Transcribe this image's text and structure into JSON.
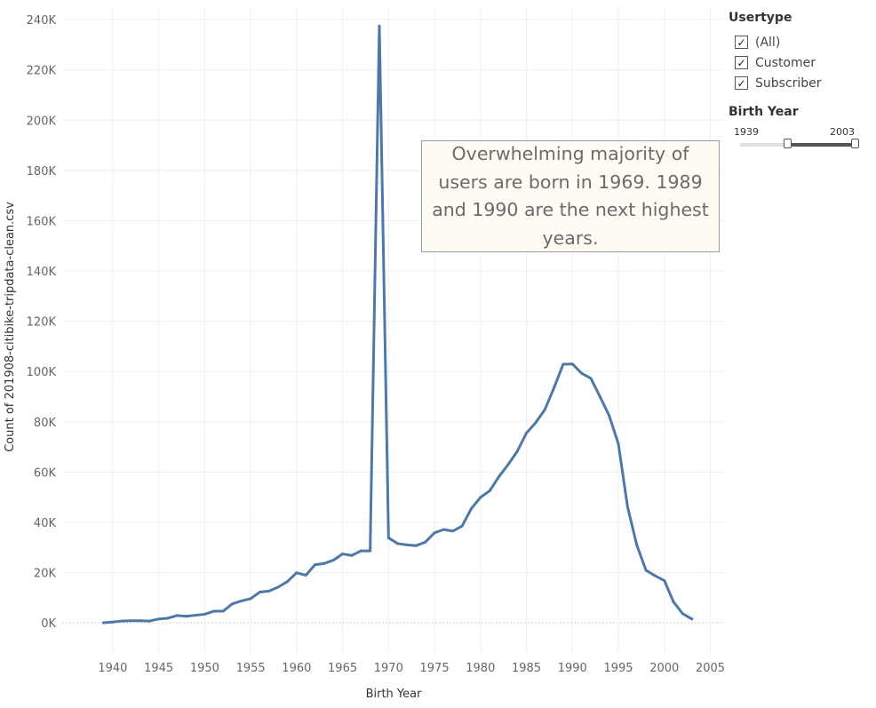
{
  "chart_data": {
    "type": "line",
    "xlabel": "Birth Year",
    "ylabel": "Count of 201908-citibike-tripdata-clean.csv",
    "xlim": [
      1934.5,
      2006.5
    ],
    "ylim": [
      -12000,
      245000
    ],
    "x_ticks": [
      1940,
      1945,
      1950,
      1955,
      1960,
      1965,
      1970,
      1975,
      1980,
      1985,
      1990,
      1995,
      2000,
      2005
    ],
    "y_ticks": [
      0,
      20000,
      40000,
      60000,
      80000,
      100000,
      120000,
      140000,
      160000,
      180000,
      200000,
      220000,
      240000
    ],
    "y_tick_labels": [
      "0K",
      "20K",
      "40K",
      "60K",
      "80K",
      "100K",
      "120K",
      "140K",
      "160K",
      "180K",
      "200K",
      "220K",
      "240K"
    ],
    "grid": true,
    "line_color": "#4e79a7",
    "series": [
      {
        "x": [
          1939,
          1940,
          1941,
          1942,
          1943,
          1944,
          1945,
          1946,
          1947,
          1948,
          1949,
          1950,
          1951,
          1952,
          1953,
          1954,
          1955,
          1956,
          1957,
          1958,
          1959,
          1960,
          1961,
          1962,
          1963,
          1964,
          1965,
          1966,
          1967,
          1968,
          1969,
          1970,
          1971,
          1972,
          1973,
          1974,
          1975,
          1976,
          1977,
          1978,
          1979,
          1980,
          1981,
          1982,
          1983,
          1984,
          1985,
          1986,
          1987,
          1988,
          1989,
          1990,
          1991,
          1992,
          1993,
          1994,
          1995,
          1996,
          1997,
          1998,
          1999,
          2000,
          2001,
          2002,
          2003
        ],
        "values": [
          0,
          300,
          700,
          800,
          800,
          700,
          1500,
          1800,
          2900,
          2600,
          3000,
          3400,
          4600,
          4600,
          7500,
          8700,
          9600,
          12200,
          12600,
          14200,
          16400,
          19900,
          18900,
          23100,
          23600,
          24900,
          27400,
          26800,
          28600,
          28600,
          237500,
          33800,
          31500,
          31000,
          30700,
          32100,
          35800,
          37100,
          36500,
          38500,
          45400,
          49900,
          52500,
          58100,
          62900,
          68200,
          75500,
          79600,
          84800,
          93500,
          102900,
          103000,
          99300,
          97300,
          90000,
          82400,
          71200,
          46200,
          31000,
          20900,
          18700,
          16800,
          8300,
          3600,
          1500
        ]
      }
    ]
  },
  "annotation": {
    "text": "Overwhelming majority of users are born in 1969. 1989 and 1990 are the next highest years."
  },
  "filters": {
    "usertype": {
      "title": "Usertype",
      "options": [
        {
          "label": "(All)",
          "checked": true
        },
        {
          "label": "Customer",
          "checked": true
        },
        {
          "label": "Subscriber",
          "checked": true
        }
      ]
    },
    "birth_year": {
      "title": "Birth Year",
      "min_label": "1939",
      "max_label": "2003"
    }
  },
  "check_glyph": "✓"
}
